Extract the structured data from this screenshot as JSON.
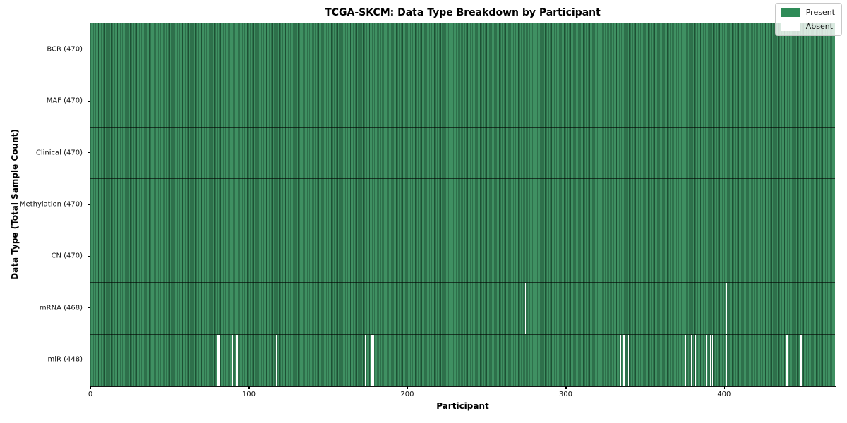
{
  "figure": {
    "title": "TCGA-SKCM: Data Type Breakdown by Participant",
    "xlabel": "Participant",
    "ylabel": "Data Type (Total Sample Count)"
  },
  "chart_data": {
    "type": "heatmap",
    "title": "TCGA-SKCM: Data Type Breakdown by Participant",
    "xlabel": "Participant",
    "ylabel": "Data Type (Total Sample Count)",
    "n_participants": 470,
    "x_ticks": [
      0,
      100,
      200,
      300,
      400
    ],
    "grid": false,
    "rows": [
      {
        "label": "BCR (470)",
        "data_type": "BCR",
        "present_count": 470,
        "absent_participants": []
      },
      {
        "label": "MAF (470)",
        "data_type": "MAF",
        "present_count": 470,
        "absent_participants": []
      },
      {
        "label": "Clinical (470)",
        "data_type": "Clinical",
        "present_count": 470,
        "absent_participants": []
      },
      {
        "label": "Methylation (470)",
        "data_type": "Methylation",
        "present_count": 470,
        "absent_participants": []
      },
      {
        "label": "CN (470)",
        "data_type": "CN",
        "present_count": 470,
        "absent_participants": []
      },
      {
        "label": "mRNA (468)",
        "data_type": "mRNA",
        "present_count": 468,
        "absent_participants": [
          274,
          401
        ]
      },
      {
        "label": "miR (448)",
        "data_type": "miR",
        "present_count": 448,
        "absent_participants": [
          13,
          80,
          81,
          89,
          92,
          117,
          173,
          177,
          178,
          334,
          336,
          339,
          375,
          379,
          381,
          388,
          391,
          392,
          393,
          401,
          439,
          448
        ]
      }
    ],
    "legend": {
      "position": "upper right",
      "items": [
        {
          "label": "Present",
          "color": "#2e8b57"
        },
        {
          "label": "Absent",
          "color": "#ffffff"
        }
      ]
    },
    "colors": {
      "present_fill": "#3f9062",
      "cell_edge": "#1d5134",
      "absent_fill": "#ffffff",
      "background": "#ffffff"
    }
  }
}
